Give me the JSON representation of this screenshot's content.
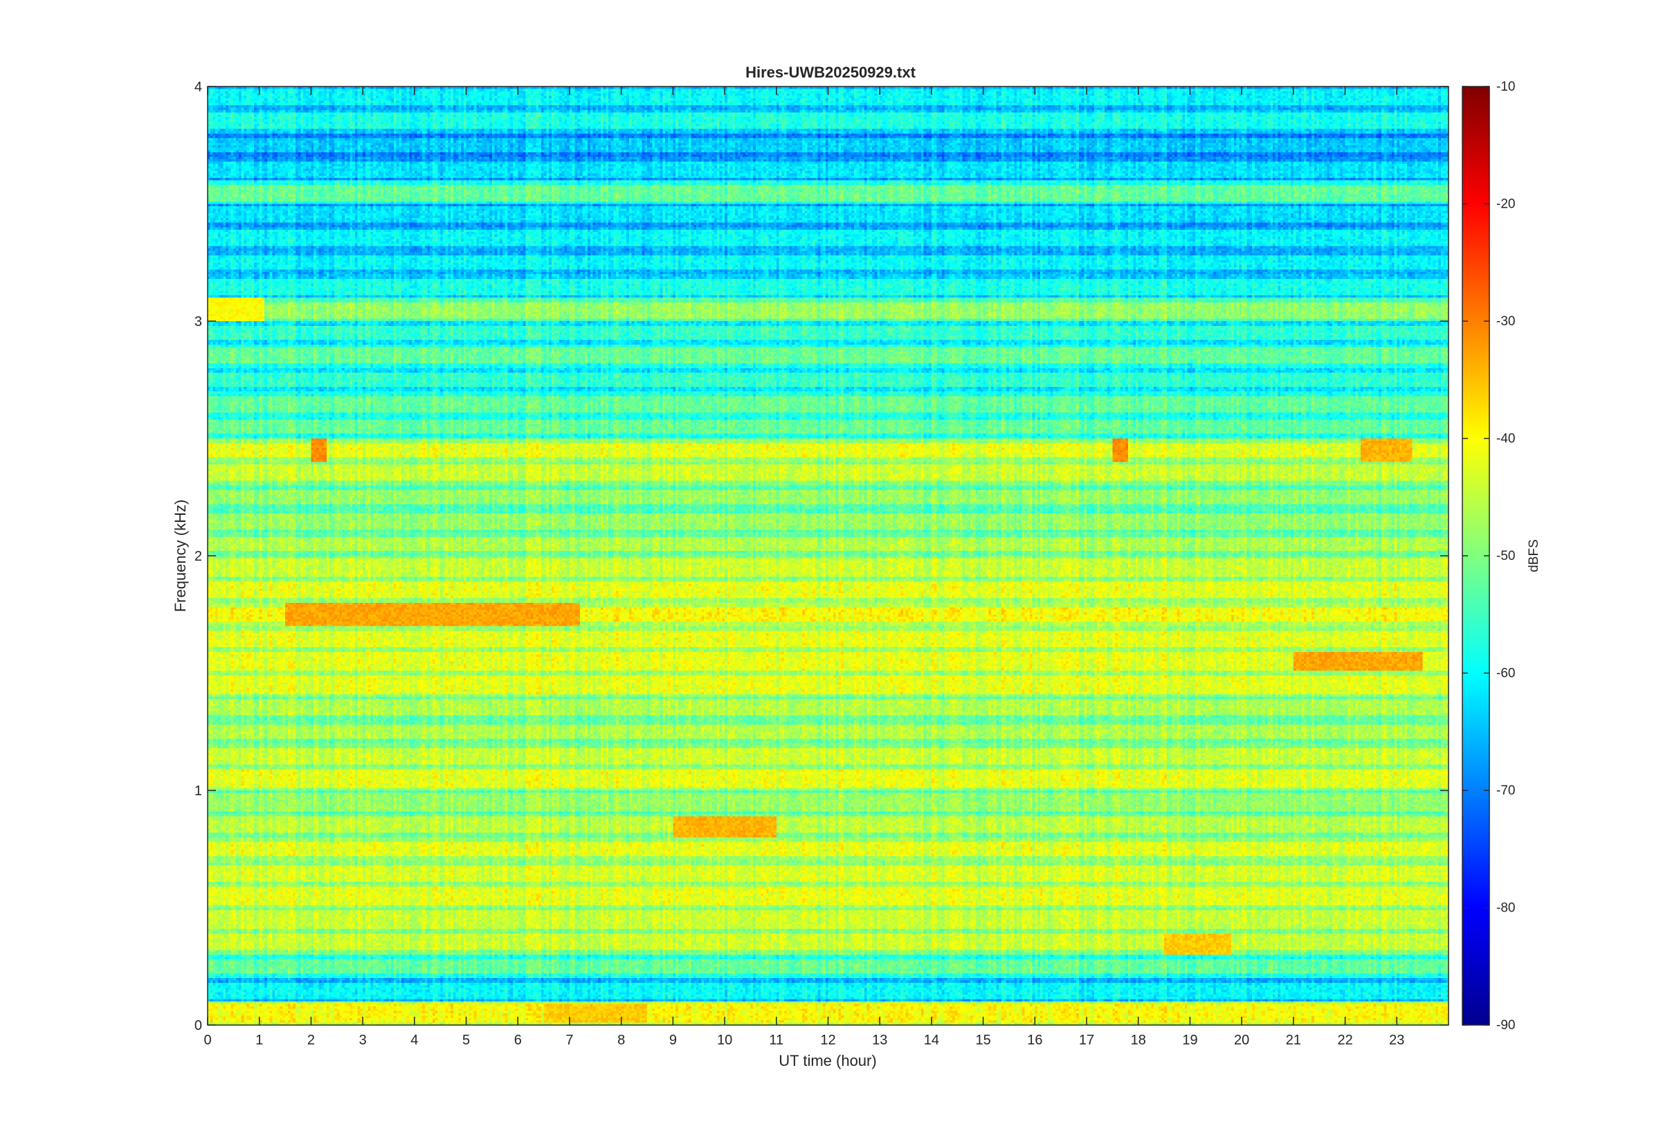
{
  "chart_data": {
    "type": "heatmap",
    "title": "Hires-UWB20250929.txt",
    "xlabel": "UT time (hour)",
    "ylabel": "Frequency (kHz)",
    "xlim": [
      0,
      24
    ],
    "ylim": [
      0,
      4
    ],
    "x_ticks": [
      "0",
      "1",
      "2",
      "3",
      "4",
      "5",
      "6",
      "7",
      "8",
      "9",
      "10",
      "11",
      "12",
      "13",
      "14",
      "15",
      "16",
      "17",
      "18",
      "19",
      "20",
      "21",
      "22",
      "23"
    ],
    "y_ticks": [
      "0",
      "1",
      "2",
      "3",
      "4"
    ],
    "colorbar": {
      "label": "dBFS",
      "range": [
        -90,
        -10
      ],
      "ticks": [
        "-10",
        "-20",
        "-30",
        "-40",
        "-50",
        "-60",
        "-70",
        "-80",
        "-90"
      ],
      "colormap": "jet"
    },
    "band_center_khz": [
      0.05,
      0.15,
      0.25,
      0.35,
      0.45,
      0.55,
      0.65,
      0.75,
      0.85,
      0.95,
      1.05,
      1.15,
      1.25,
      1.35,
      1.45,
      1.55,
      1.65,
      1.75,
      1.85,
      1.95,
      2.05,
      2.15,
      2.25,
      2.35,
      2.45,
      2.55,
      2.65,
      2.75,
      2.85,
      2.95,
      3.05,
      3.15,
      3.25,
      3.35,
      3.45,
      3.55,
      3.65,
      3.75,
      3.85,
      3.95
    ],
    "band_level_dbfs": [
      -40,
      -60,
      -52,
      -44,
      -44,
      -42,
      -43,
      -42,
      -45,
      -48,
      -42,
      -44,
      -46,
      -46,
      -42,
      -42,
      -42,
      -40,
      -42,
      -44,
      -46,
      -48,
      -48,
      -44,
      -42,
      -52,
      -52,
      -56,
      -52,
      -56,
      -48,
      -58,
      -60,
      -60,
      -62,
      -52,
      -62,
      -64,
      -58,
      -60
    ],
    "hot_spots": [
      {
        "f_khz": 1.75,
        "h0": 1.5,
        "h1": 7.2,
        "dbfs": -33
      },
      {
        "f_khz": 1.55,
        "h0": 21.0,
        "h1": 23.5,
        "dbfs": -33
      },
      {
        "f_khz": 0.85,
        "h0": 9.0,
        "h1": 11.0,
        "dbfs": -34
      },
      {
        "f_khz": 2.45,
        "h0": 2.0,
        "h1": 2.3,
        "dbfs": -31
      },
      {
        "f_khz": 2.45,
        "h0": 17.5,
        "h1": 17.8,
        "dbfs": -31
      },
      {
        "f_khz": 2.45,
        "h0": 22.3,
        "h1": 23.3,
        "dbfs": -34
      },
      {
        "f_khz": 0.35,
        "h0": 18.5,
        "h1": 19.8,
        "dbfs": -36
      },
      {
        "f_khz": 0.05,
        "h0": 6.5,
        "h1": 8.5,
        "dbfs": -36
      },
      {
        "f_khz": 3.05,
        "h0": 0.0,
        "h1": 1.1,
        "dbfs": -40
      }
    ],
    "grid": false
  }
}
